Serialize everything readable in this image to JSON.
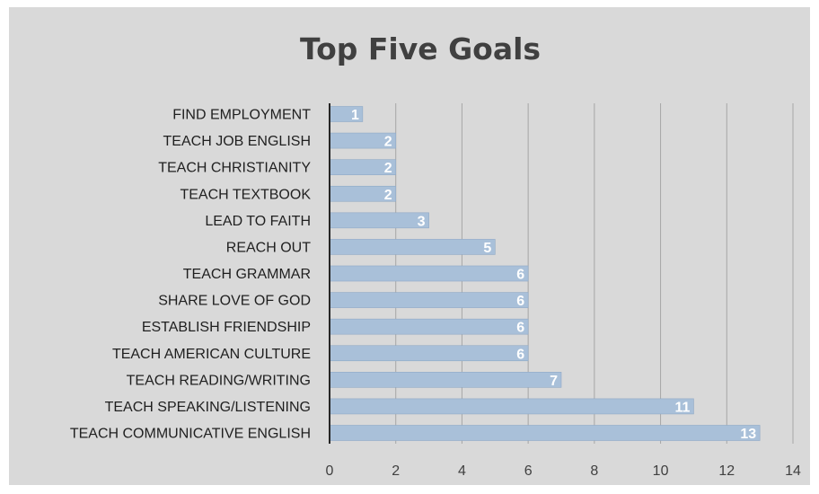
{
  "chart_data": {
    "type": "bar",
    "orientation": "horizontal",
    "title": "Top Five Goals",
    "categories": [
      "FIND EMPLOYMENT",
      "TEACH JOB ENGLISH",
      "TEACH CHRISTIANITY",
      "TEACH TEXTBOOK",
      "LEAD TO FAITH",
      "REACH OUT",
      "TEACH GRAMMAR",
      "SHARE LOVE OF GOD",
      "ESTABLISH FRIENDSHIP",
      "TEACH AMERICAN CULTURE",
      "TEACH READING/WRITING",
      "TEACH SPEAKING/LISTENING",
      "TEACH COMMUNICATIVE ENGLISH"
    ],
    "values": [
      1,
      2,
      2,
      2,
      3,
      5,
      6,
      6,
      6,
      6,
      7,
      11,
      13
    ],
    "xlim": [
      0,
      14
    ],
    "xticks": [
      0,
      2,
      4,
      6,
      8,
      10,
      12,
      14
    ],
    "grid": "vertical",
    "legend": "none",
    "data_labels": "inside-end",
    "colors": {
      "bar": "#a9c0d9",
      "bar_edge": "#8fa9c6",
      "background": "#d9d9d9",
      "grid": "#a6a6a6",
      "axis": "#262626"
    }
  }
}
